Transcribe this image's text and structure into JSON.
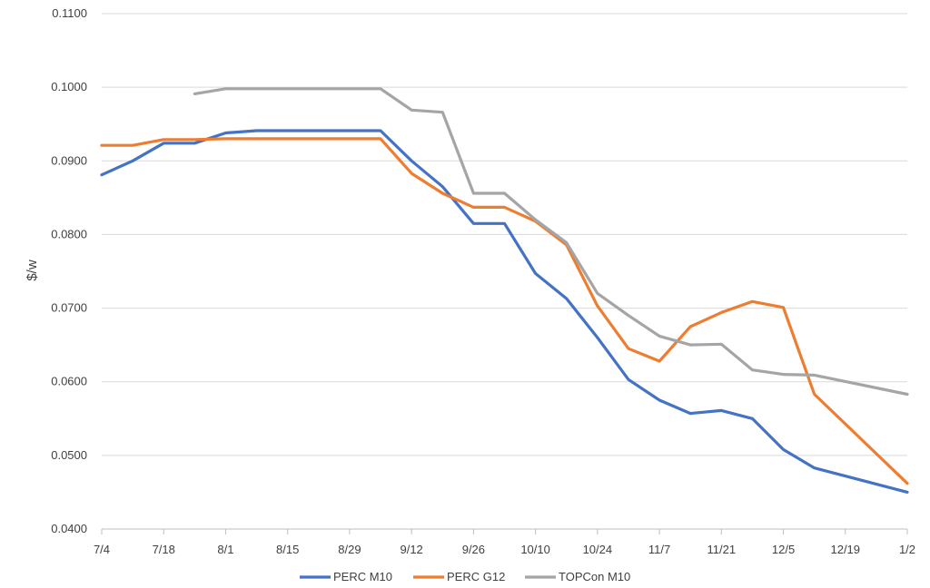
{
  "chart_data": {
    "type": "line",
    "title": "",
    "xlabel": "",
    "ylabel": "$/w",
    "x_ticks": [
      "7/4",
      "7/18",
      "8/1",
      "8/15",
      "8/29",
      "9/12",
      "9/26",
      "10/10",
      "10/24",
      "11/7",
      "11/21",
      "12/5",
      "12/19",
      "1/2"
    ],
    "y_ticks": [
      "0.0400",
      "0.0500",
      "0.0600",
      "0.0700",
      "0.0800",
      "0.0900",
      "0.1000",
      "0.1100"
    ],
    "ylim": [
      0.04,
      0.11
    ],
    "grid": "horizontal",
    "legend_position": "bottom",
    "x_dates": [
      "7/4",
      "7/11",
      "7/18",
      "7/25",
      "8/1",
      "8/8",
      "8/15",
      "8/22",
      "8/29",
      "9/5",
      "9/12",
      "9/19",
      "9/26",
      "10/3",
      "10/10",
      "10/17",
      "10/24",
      "10/31",
      "11/7",
      "11/14",
      "11/21",
      "11/28",
      "12/5",
      "12/12",
      "12/19",
      "12/26",
      "1/2"
    ],
    "series": [
      {
        "name": "PERC M10",
        "color": "#4472c4",
        "values": [
          0.0881,
          0.09,
          0.0924,
          0.0924,
          0.0938,
          0.0941,
          0.0941,
          0.0941,
          0.0941,
          0.0941,
          0.09,
          0.0865,
          0.0815,
          0.0815,
          0.0747,
          0.0713,
          0.066,
          0.0603,
          0.0575,
          0.0557,
          0.0561,
          0.055,
          0.0508,
          0.0483,
          null,
          null,
          0.045
        ]
      },
      {
        "name": "PERC G12",
        "color": "#ed7d31",
        "values": [
          0.0921,
          0.0921,
          0.0929,
          0.0929,
          0.093,
          0.093,
          0.093,
          0.093,
          0.093,
          0.093,
          0.0883,
          0.0856,
          0.0837,
          0.0837,
          0.0818,
          0.0786,
          0.0703,
          0.0645,
          0.0628,
          0.0675,
          0.0694,
          0.0709,
          0.0701,
          0.0583,
          null,
          null,
          0.0462
        ]
      },
      {
        "name": "TOPCon M10",
        "color": "#a5a5a5",
        "values": [
          null,
          null,
          null,
          0.0991,
          0.0998,
          0.0998,
          0.0998,
          0.0998,
          0.0998,
          0.0998,
          0.0969,
          0.0966,
          0.0856,
          0.0856,
          0.082,
          0.0789,
          0.072,
          0.069,
          0.0662,
          0.065,
          0.0651,
          0.0616,
          0.061,
          0.0609,
          null,
          null,
          0.0583
        ]
      }
    ]
  }
}
